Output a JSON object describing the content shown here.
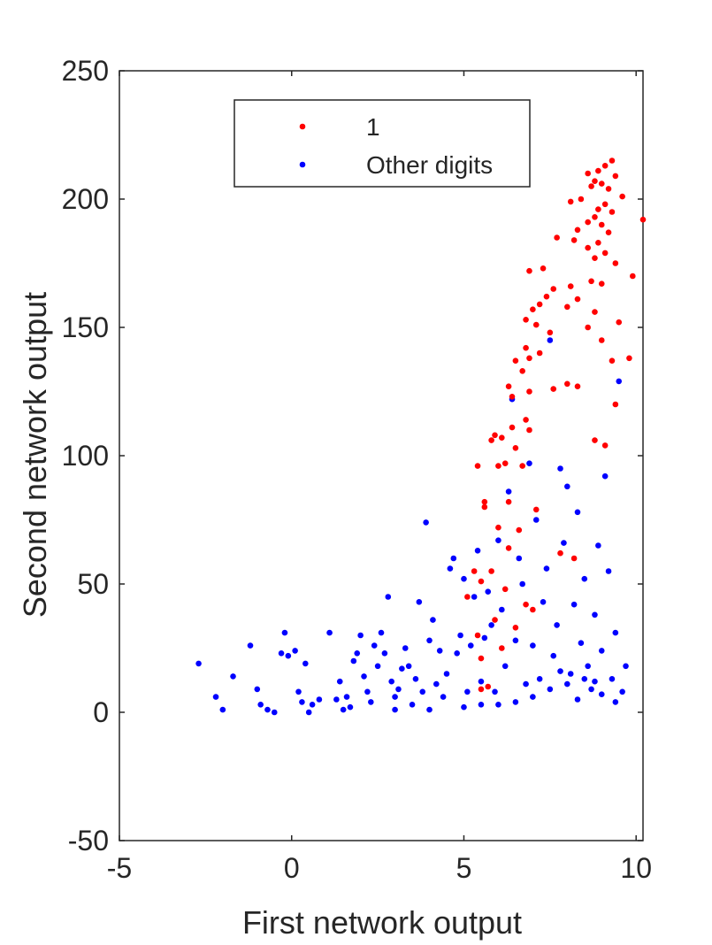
{
  "chart_data": {
    "type": "scatter",
    "xlabel": "First network output",
    "ylabel": "Second network output",
    "xlim": [
      -5,
      10.2
    ],
    "ylim": [
      -50,
      250
    ],
    "xticks": [
      "-5",
      "0",
      "5",
      "10"
    ],
    "yticks": [
      "-50",
      "0",
      "50",
      "100",
      "150",
      "200",
      "250"
    ],
    "grid": false,
    "legend_position": "top-center",
    "series": [
      {
        "name": "1",
        "color": "#ff0000",
        "points": [
          [
            9.3,
            215
          ],
          [
            9.1,
            213
          ],
          [
            8.9,
            211
          ],
          [
            8.6,
            210
          ],
          [
            9.4,
            209
          ],
          [
            8.8,
            207
          ],
          [
            9.0,
            206
          ],
          [
            8.7,
            205
          ],
          [
            9.2,
            204
          ],
          [
            9.6,
            201
          ],
          [
            8.4,
            200
          ],
          [
            8.1,
            199
          ],
          [
            9.1,
            198
          ],
          [
            8.9,
            196
          ],
          [
            9.3,
            195
          ],
          [
            8.8,
            193
          ],
          [
            10.2,
            192
          ],
          [
            8.6,
            191
          ],
          [
            9.0,
            190
          ],
          [
            8.3,
            188
          ],
          [
            9.2,
            187
          ],
          [
            7.7,
            185
          ],
          [
            8.2,
            184
          ],
          [
            8.9,
            183
          ],
          [
            8.6,
            181
          ],
          [
            9.1,
            179
          ],
          [
            8.8,
            177
          ],
          [
            9.4,
            175
          ],
          [
            7.3,
            173
          ],
          [
            6.9,
            172
          ],
          [
            9.9,
            170
          ],
          [
            8.7,
            168
          ],
          [
            9.0,
            167
          ],
          [
            8.1,
            166
          ],
          [
            7.6,
            165
          ],
          [
            7.4,
            162
          ],
          [
            8.3,
            161
          ],
          [
            7.2,
            159
          ],
          [
            8.0,
            158
          ],
          [
            7.0,
            157
          ],
          [
            8.8,
            156
          ],
          [
            6.8,
            153
          ],
          [
            9.5,
            152
          ],
          [
            7.1,
            151
          ],
          [
            8.6,
            150
          ],
          [
            7.5,
            148
          ],
          [
            9.0,
            145
          ],
          [
            6.8,
            142
          ],
          [
            7.2,
            140
          ],
          [
            6.9,
            138
          ],
          [
            9.8,
            138
          ],
          [
            6.5,
            137
          ],
          [
            9.3,
            137
          ],
          [
            6.7,
            133
          ],
          [
            6.3,
            127
          ],
          [
            7.6,
            126
          ],
          [
            6.9,
            125
          ],
          [
            6.4,
            123
          ],
          [
            8.0,
            128
          ],
          [
            8.3,
            127
          ],
          [
            9.4,
            120
          ],
          [
            6.8,
            114
          ],
          [
            6.4,
            111
          ],
          [
            6.9,
            110
          ],
          [
            5.9,
            108
          ],
          [
            6.1,
            107
          ],
          [
            5.8,
            106
          ],
          [
            8.8,
            106
          ],
          [
            9.1,
            104
          ],
          [
            6.5,
            103
          ],
          [
            6.2,
            97
          ],
          [
            6.0,
            96
          ],
          [
            5.4,
            96
          ],
          [
            6.7,
            96
          ],
          [
            5.6,
            82
          ],
          [
            6.3,
            82
          ],
          [
            5.6,
            80
          ],
          [
            7.1,
            79
          ],
          [
            6.0,
            72
          ],
          [
            6.6,
            71
          ],
          [
            6.3,
            64
          ],
          [
            5.8,
            55
          ],
          [
            5.3,
            55
          ],
          [
            5.5,
            51
          ],
          [
            6.2,
            48
          ],
          [
            5.1,
            45
          ],
          [
            6.8,
            42
          ],
          [
            7.0,
            40
          ],
          [
            5.9,
            36
          ],
          [
            6.5,
            33
          ],
          [
            5.4,
            30
          ],
          [
            6.1,
            25
          ],
          [
            5.5,
            21
          ],
          [
            5.5,
            9
          ],
          [
            5.7,
            10
          ],
          [
            8.2,
            60
          ],
          [
            7.8,
            62
          ]
        ]
      },
      {
        "name": "Other digits",
        "color": "#0000ff",
        "points": [
          [
            -2.7,
            19
          ],
          [
            -2.2,
            6
          ],
          [
            -2.0,
            1
          ],
          [
            -1.7,
            14
          ],
          [
            -1.2,
            26
          ],
          [
            -1.0,
            9
          ],
          [
            -0.9,
            3
          ],
          [
            -0.7,
            1
          ],
          [
            -0.5,
            0
          ],
          [
            -0.3,
            23
          ],
          [
            -0.2,
            31
          ],
          [
            -0.1,
            22
          ],
          [
            0.1,
            24
          ],
          [
            0.2,
            8
          ],
          [
            0.3,
            4
          ],
          [
            0.4,
            19
          ],
          [
            0.6,
            3
          ],
          [
            0.8,
            5
          ],
          [
            1.1,
            31
          ],
          [
            1.3,
            5
          ],
          [
            1.4,
            12
          ],
          [
            1.6,
            6
          ],
          [
            1.7,
            2
          ],
          [
            1.8,
            20
          ],
          [
            1.9,
            23
          ],
          [
            2.0,
            30
          ],
          [
            2.1,
            14
          ],
          [
            2.2,
            8
          ],
          [
            2.3,
            4
          ],
          [
            2.4,
            26
          ],
          [
            2.5,
            18
          ],
          [
            2.6,
            31
          ],
          [
            2.7,
            23
          ],
          [
            2.8,
            45
          ],
          [
            2.9,
            12
          ],
          [
            3.0,
            6
          ],
          [
            3.1,
            9
          ],
          [
            3.2,
            17
          ],
          [
            3.3,
            25
          ],
          [
            3.4,
            18
          ],
          [
            3.5,
            3
          ],
          [
            3.6,
            13
          ],
          [
            3.7,
            43
          ],
          [
            3.8,
            8
          ],
          [
            3.9,
            74
          ],
          [
            4.0,
            28
          ],
          [
            4.1,
            36
          ],
          [
            4.2,
            11
          ],
          [
            4.3,
            24
          ],
          [
            4.4,
            6
          ],
          [
            4.5,
            15
          ],
          [
            4.6,
            56
          ],
          [
            4.7,
            60
          ],
          [
            4.8,
            23
          ],
          [
            4.9,
            30
          ],
          [
            5.0,
            52
          ],
          [
            5.1,
            8
          ],
          [
            5.2,
            26
          ],
          [
            5.3,
            45
          ],
          [
            5.4,
            63
          ],
          [
            5.5,
            12
          ],
          [
            5.6,
            29
          ],
          [
            5.7,
            47
          ],
          [
            5.8,
            34
          ],
          [
            5.9,
            8
          ],
          [
            6.0,
            67
          ],
          [
            6.1,
            40
          ],
          [
            6.2,
            18
          ],
          [
            6.3,
            86
          ],
          [
            6.4,
            122
          ],
          [
            6.5,
            28
          ],
          [
            6.6,
            60
          ],
          [
            6.7,
            50
          ],
          [
            6.8,
            11
          ],
          [
            6.9,
            97
          ],
          [
            7.0,
            26
          ],
          [
            7.1,
            75
          ],
          [
            7.2,
            13
          ],
          [
            7.3,
            43
          ],
          [
            7.4,
            56
          ],
          [
            7.5,
            145
          ],
          [
            7.6,
            22
          ],
          [
            7.7,
            34
          ],
          [
            7.8,
            95
          ],
          [
            7.9,
            66
          ],
          [
            8.0,
            88
          ],
          [
            8.1,
            15
          ],
          [
            8.2,
            42
          ],
          [
            8.3,
            78
          ],
          [
            8.4,
            27
          ],
          [
            8.5,
            52
          ],
          [
            8.6,
            18
          ],
          [
            8.7,
            9
          ],
          [
            8.8,
            38
          ],
          [
            8.9,
            65
          ],
          [
            9.0,
            24
          ],
          [
            9.1,
            92
          ],
          [
            9.2,
            55
          ],
          [
            9.3,
            13
          ],
          [
            9.4,
            31
          ],
          [
            9.5,
            129
          ],
          [
            9.6,
            8
          ],
          [
            9.7,
            18
          ],
          [
            5.0,
            2
          ],
          [
            5.5,
            3
          ],
          [
            6.0,
            3
          ],
          [
            6.5,
            4
          ],
          [
            7.0,
            6
          ],
          [
            7.5,
            9
          ],
          [
            8.0,
            11
          ],
          [
            8.5,
            13
          ],
          [
            9.0,
            7
          ],
          [
            9.4,
            4
          ],
          [
            3.0,
            1
          ],
          [
            4.0,
            1
          ],
          [
            1.5,
            1
          ],
          [
            0.5,
            0
          ],
          [
            7.8,
            16
          ],
          [
            8.3,
            5
          ],
          [
            8.8,
            12
          ]
        ]
      }
    ]
  }
}
